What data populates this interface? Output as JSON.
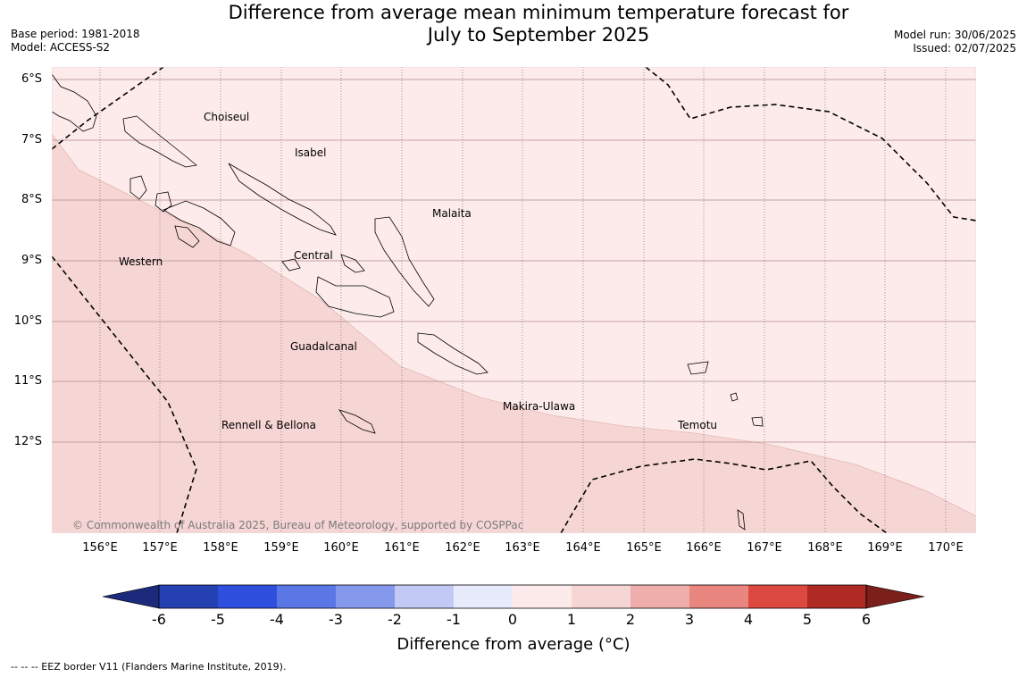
{
  "header": {
    "title_line1": "Difference from average mean minimum temperature forecast for",
    "title_line2": "July to September 2025",
    "base_period": "Base period: 1981-2018",
    "model": "Model: ACCESS-S2",
    "model_run": "Model run: 30/06/2025",
    "issued": "Issued: 02/07/2025"
  },
  "map": {
    "lat_labels": [
      "6°S",
      "7°S",
      "8°S",
      "9°S",
      "10°S",
      "11°S",
      "12°S"
    ],
    "lon_labels": [
      "156°E",
      "157°E",
      "158°E",
      "159°E",
      "160°E",
      "161°E",
      "162°E",
      "163°E",
      "164°E",
      "165°E",
      "166°E",
      "167°E",
      "168°E",
      "169°E",
      "170°E"
    ],
    "places": [
      "Choiseul",
      "Isabel",
      "Malaita",
      "Western",
      "Central",
      "Guadalcanal",
      "Makira-Ulawa",
      "Temotu",
      "Rennell & Bellona"
    ],
    "copyright": "© Commonwealth of Australia 2025, Bureau of Meteorology, supported by COSPPac",
    "fill_colors": {
      "band_0_1": "#fcebea",
      "band_1_2": "#f6d6d4"
    }
  },
  "colorbar": {
    "ticks": [
      "-6",
      "-5",
      "-4",
      "-3",
      "-2",
      "-1",
      "0",
      "1",
      "2",
      "3",
      "4",
      "5",
      "6"
    ],
    "colors": [
      "#1b2a7a",
      "#2540b0",
      "#2f4fde",
      "#5a77e5",
      "#8599ec",
      "#c1c9f4",
      "#e8ebfc",
      "#fcebea",
      "#f6d6d4",
      "#efaeab",
      "#e8867f",
      "#dc4940",
      "#ae2a22",
      "#7a1f1a"
    ],
    "label": "Difference from average (°C)"
  },
  "footnote": "--  --  -- EEZ border V11 (Flanders Marine Institute, 2019)."
}
